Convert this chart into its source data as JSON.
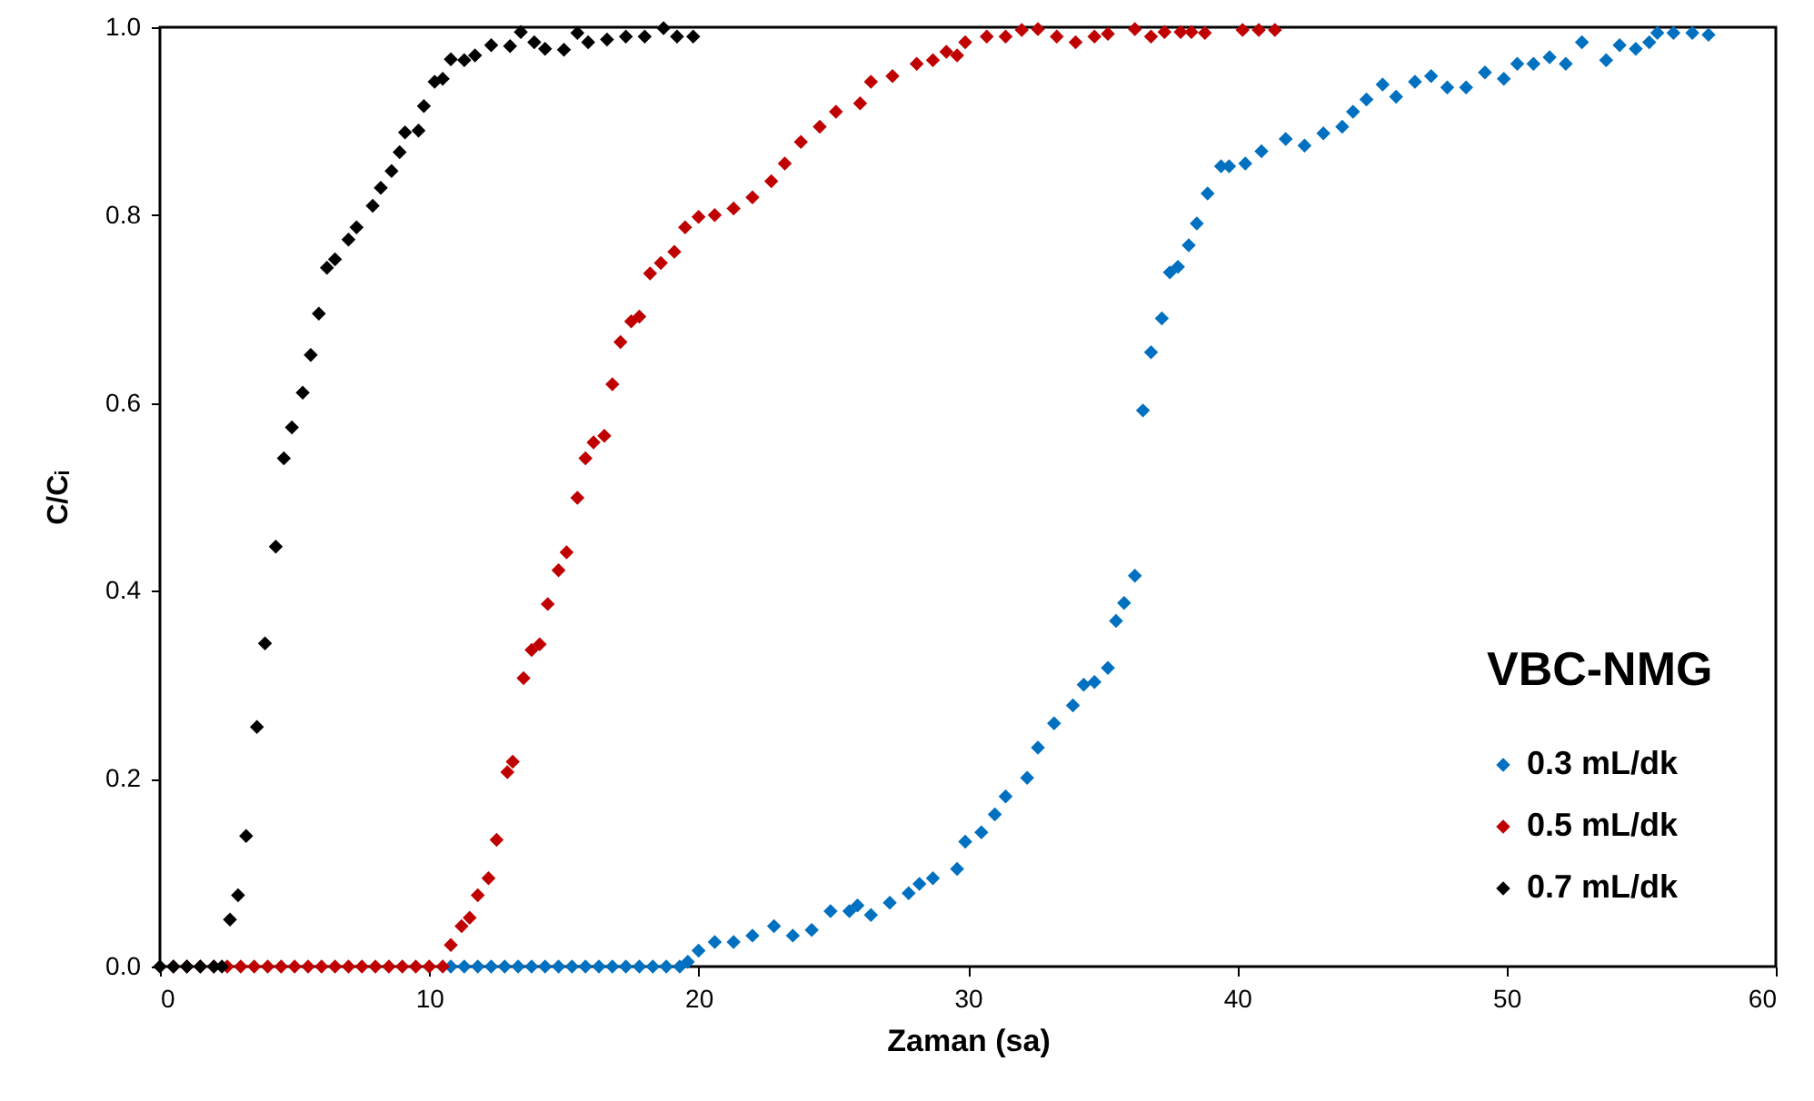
{
  "chart_data": {
    "type": "scatter",
    "xlabel": "Zaman (sa)",
    "ylabel": "C/Cᵢ",
    "legend_title": "VBC-NMG",
    "legend": "bottom right",
    "marker": "diamond",
    "grid": false,
    "xlim": [
      0,
      60
    ],
    "xticks": [
      0,
      10,
      20,
      30,
      40,
      50,
      60
    ],
    "ylim": [
      0,
      1
    ],
    "yticks": [
      {
        "value": 0,
        "label": "0.0"
      },
      0.2,
      0.4,
      0.6,
      0.8,
      {
        "value": 1,
        "label": "1.0"
      }
    ],
    "series": [
      {
        "name": "0.3 mL/dk",
        "color": "#0070c0",
        "x": [
          10.8,
          11.3,
          11.8,
          12.3,
          12.8,
          13.3,
          13.8,
          14.3,
          14.8,
          15.3,
          15.8,
          16.3,
          16.8,
          17.3,
          17.8,
          18.3,
          18.8,
          19.3,
          19.6,
          20.0,
          20.6,
          21.3,
          22.0,
          22.8,
          23.5,
          24.2,
          24.9,
          25.6,
          25.9,
          26.4,
          27.1,
          27.8,
          28.2,
          28.7,
          29.6,
          29.9,
          30.5,
          31.0,
          31.4,
          32.2,
          32.6,
          33.2,
          33.9,
          34.3,
          34.7,
          35.2,
          35.5,
          35.8,
          36.2,
          36.5,
          36.8,
          37.2,
          37.5,
          37.8,
          38.2,
          38.5,
          38.9,
          39.4,
          39.7,
          40.3,
          40.9,
          41.8,
          42.5,
          43.2,
          43.9,
          44.3,
          44.8,
          45.4,
          45.9,
          46.6,
          47.2,
          47.8,
          48.5,
          49.2,
          49.9,
          50.4,
          51.0,
          51.6,
          52.2,
          52.8,
          53.7,
          54.2,
          54.8,
          55.3,
          55.6,
          56.2,
          56.9,
          57.5
        ],
        "values": [
          0,
          0,
          0,
          0,
          0,
          0,
          0,
          0,
          0,
          0,
          0,
          0,
          0,
          0,
          0,
          0,
          0,
          0,
          0.005,
          0.017,
          0.026,
          0.026,
          0.033,
          0.043,
          0.033,
          0.039,
          0.059,
          0.059,
          0.065,
          0.055,
          0.068,
          0.078,
          0.088,
          0.094,
          0.104,
          0.133,
          0.143,
          0.162,
          0.181,
          0.201,
          0.233,
          0.259,
          0.278,
          0.3,
          0.303,
          0.318,
          0.368,
          0.387,
          0.416,
          0.592,
          0.654,
          0.69,
          0.739,
          0.745,
          0.768,
          0.791,
          0.823,
          0.852,
          0.852,
          0.855,
          0.868,
          0.881,
          0.874,
          0.887,
          0.894,
          0.91,
          0.923,
          0.939,
          0.926,
          0.942,
          0.948,
          0.936,
          0.936,
          0.952,
          0.945,
          0.961,
          0.961,
          0.968,
          0.961,
          0.984,
          0.965,
          0.981,
          0.977,
          0.984,
          0.994,
          0.994,
          0.994,
          0.992
        ]
      },
      {
        "name": "0.5 mL/dk",
        "color": "#c00000",
        "x": [
          0.5,
          1.0,
          1.5,
          2.0,
          2.5,
          3.0,
          3.5,
          4.0,
          4.5,
          5.0,
          5.5,
          6.0,
          6.5,
          7.0,
          7.5,
          8.0,
          8.5,
          9.0,
          9.5,
          10.0,
          10.5,
          10.8,
          11.2,
          11.5,
          11.8,
          12.2,
          12.5,
          12.9,
          13.1,
          13.5,
          13.8,
          14.1,
          14.4,
          14.8,
          15.1,
          15.5,
          15.8,
          16.1,
          16.5,
          16.8,
          17.1,
          17.5,
          17.8,
          18.2,
          18.6,
          19.1,
          19.5,
          20.0,
          20.6,
          21.3,
          22.0,
          22.7,
          23.2,
          23.8,
          24.5,
          25.1,
          26.0,
          26.4,
          27.2,
          28.1,
          28.7,
          29.2,
          29.6,
          29.9,
          30.7,
          31.4,
          32.0,
          32.6,
          33.3,
          34.0,
          34.7,
          35.2,
          36.2,
          36.8,
          37.3,
          37.9,
          38.3,
          38.8,
          40.2,
          40.8,
          41.4
        ],
        "values": [
          0,
          0,
          0,
          0,
          0,
          0,
          0,
          0,
          0,
          0,
          0,
          0,
          0,
          0,
          0,
          0,
          0,
          0,
          0,
          0,
          0,
          0.023,
          0.043,
          0.052,
          0.076,
          0.094,
          0.135,
          0.207,
          0.218,
          0.307,
          0.337,
          0.343,
          0.386,
          0.422,
          0.441,
          0.499,
          0.541,
          0.558,
          0.565,
          0.62,
          0.665,
          0.687,
          0.692,
          0.738,
          0.749,
          0.761,
          0.787,
          0.798,
          0.8,
          0.807,
          0.819,
          0.836,
          0.855,
          0.878,
          0.894,
          0.91,
          0.919,
          0.942,
          0.948,
          0.961,
          0.965,
          0.974,
          0.97,
          0.984,
          0.99,
          0.99,
          0.997,
          0.998,
          0.99,
          0.984,
          0.99,
          0.993,
          0.998,
          0.99,
          0.995,
          0.995,
          0.995,
          0.994,
          0.997,
          0.997,
          0.997
        ]
      },
      {
        "name": "0.7 mL/dk",
        "color": "#000000",
        "x": [
          0.0,
          0.5,
          1.0,
          1.5,
          2.0,
          2.3,
          2.6,
          2.9,
          3.2,
          3.6,
          3.9,
          4.3,
          4.6,
          4.9,
          5.3,
          5.6,
          5.9,
          6.2,
          6.5,
          7.0,
          7.3,
          7.9,
          8.2,
          8.6,
          8.9,
          9.1,
          9.6,
          9.8,
          10.2,
          10.5,
          10.8,
          11.3,
          11.7,
          12.3,
          13.0,
          13.4,
          13.9,
          14.3,
          15.0,
          15.5,
          15.9,
          16.6,
          17.3,
          18.0,
          18.7,
          19.2,
          19.8
        ],
        "values": [
          0,
          0,
          0,
          0,
          0,
          0,
          0.05,
          0.076,
          0.139,
          0.255,
          0.344,
          0.447,
          0.541,
          0.574,
          0.611,
          0.651,
          0.695,
          0.744,
          0.753,
          0.774,
          0.787,
          0.81,
          0.829,
          0.847,
          0.867,
          0.888,
          0.89,
          0.916,
          0.942,
          0.945,
          0.966,
          0.965,
          0.97,
          0.981,
          0.98,
          0.995,
          0.984,
          0.977,
          0.976,
          0.994,
          0.984,
          0.987,
          0.99,
          0.99,
          0.999,
          0.99,
          0.99
        ]
      }
    ]
  }
}
